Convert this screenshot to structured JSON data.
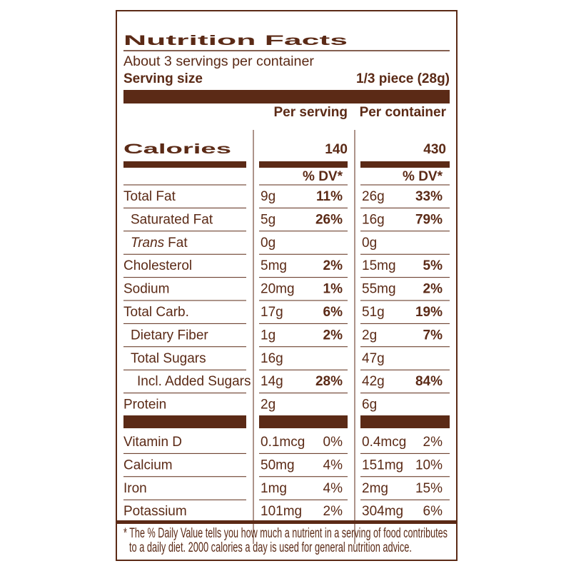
{
  "header": {
    "title": "Nutrition Facts",
    "servings": "About 3 servings per container",
    "serving_size_label": "Serving size",
    "serving_size": "1/3 piece (28g)"
  },
  "columns": [
    "Per serving",
    "Per container"
  ],
  "calories": {
    "label": "Calories",
    "values": [
      140,
      430
    ]
  },
  "dv_header": [
    "% DV*",
    "% DV*"
  ],
  "nutrients": [
    {
      "label": "Total Fat",
      "serving": [
        "9g",
        "11%"
      ],
      "container": [
        "26g",
        "33%"
      ]
    },
    {
      "label": "Saturated Fat",
      "serving": [
        "5g",
        "26%"
      ],
      "container": [
        "16g",
        "79%"
      ]
    },
    {
      "label_italic": "Trans",
      "label": "Fat",
      "serving": [
        "0g"
      ],
      "container": [
        "0g"
      ]
    },
    {
      "label": "Cholesterol",
      "serving": [
        "5mg",
        "2%"
      ],
      "container": [
        "15mg",
        "5%"
      ]
    },
    {
      "label": "Sodium",
      "serving": [
        "20mg",
        "1%"
      ],
      "container": [
        "55mg",
        "2%"
      ]
    },
    {
      "label": "Total Carb.",
      "serving": [
        "17g",
        "6%"
      ],
      "container": [
        "51g",
        "19%"
      ]
    },
    {
      "label": "Dietary Fiber",
      "serving": [
        "1g",
        "2%"
      ],
      "container": [
        "2g",
        "7%"
      ]
    },
    {
      "label": "Total Sugars",
      "serving": [
        "16g"
      ],
      "container": [
        "47g"
      ]
    },
    {
      "label": "Incl. Added Sugars",
      "serving": [
        "14g",
        "28%"
      ],
      "container": [
        "42g",
        "84%"
      ]
    },
    {
      "label": "Protein",
      "serving": [
        "2g"
      ],
      "container": [
        "6g"
      ]
    }
  ],
  "vitamins": [
    {
      "label": "Vitamin D",
      "serving": [
        "0.1mcg",
        "0%"
      ],
      "container": [
        "0.4mcg",
        "2%"
      ]
    },
    {
      "label": "Calcium",
      "serving": [
        "50mg",
        "4%"
      ],
      "container": [
        "151mg",
        "10%"
      ]
    },
    {
      "label": "Iron",
      "serving": [
        "1mg",
        "4%"
      ],
      "container": [
        "2mg",
        "15%"
      ]
    },
    {
      "label": "Potassium",
      "serving": [
        "101mg",
        "2%"
      ],
      "container": [
        "304mg",
        "6%"
      ]
    }
  ],
  "footnote": [
    "* The % Daily Value tells you how much a nutrient in a serving of food contributes",
    "to a daily diet. 2000 calories a day is used for general nutrition advice."
  ]
}
